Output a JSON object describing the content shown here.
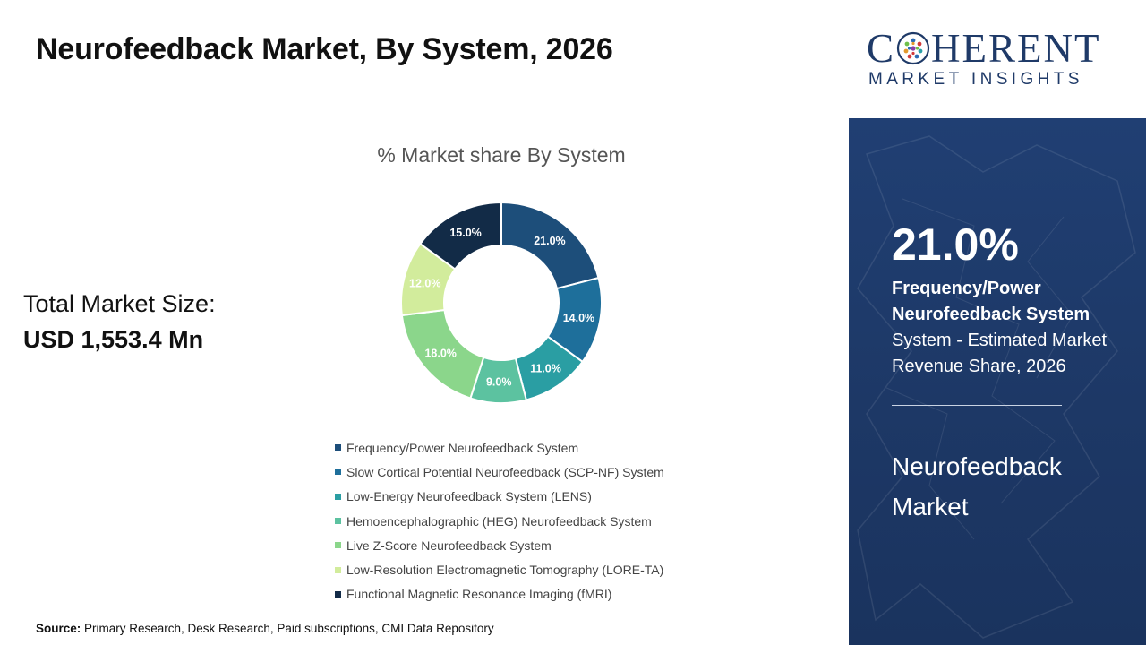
{
  "title": "Neurofeedback Market, By System, 2026",
  "total_market": {
    "label": "Total Market Size:",
    "value": "USD 1,553.4 Mn"
  },
  "source": {
    "label": "Source:",
    "text": " Primary Research, Desk Research, Paid subscriptions, CMI Data Repository"
  },
  "chart_data": {
    "type": "pie",
    "donut": true,
    "title": "% Market share By System",
    "legend_position": "bottom",
    "categories": [
      "Frequency/Power Neurofeedback System",
      "Slow Cortical Potential Neurofeedback (SCP-NF) System",
      "Low-Energy Neurofeedback System (LENS)",
      "Hemoencephalographic (HEG) Neurofeedback System",
      "Live Z-Score Neurofeedback System",
      "Low-Resolution Electromagnetic Tomography (LORE-TA)",
      "Functional Magnetic Resonance Imaging (fMRI)"
    ],
    "values": [
      21.0,
      14.0,
      11.0,
      9.0,
      18.0,
      12.0,
      15.0
    ],
    "data_labels": [
      "21.0%",
      "14.0%",
      "11.0%",
      "9.0%",
      "18.0%",
      "12.0%",
      "15.0%"
    ],
    "colors": [
      "#1d4e7a",
      "#1e6f9b",
      "#2a9ea3",
      "#5cc2a0",
      "#8bd68b",
      "#d2ec9c",
      "#122b47"
    ],
    "label_colors": [
      "#ffffff",
      "#ffffff",
      "#ffffff",
      "#ffffff",
      "#ffffff",
      "#ffffff",
      "#ffffff"
    ]
  },
  "sidebar": {
    "logo_word_left": "C",
    "logo_word_right": "HERENT",
    "logo_tagline": "MARKET INSIGHTS",
    "highlight_value": "21.0%",
    "highlight_segment": "Frequency/Power Neurofeedback System",
    "highlight_description": "System - Estimated Market Revenue Share, 2026",
    "market_name": "Neurofeedback Market",
    "panel_color": "#1f3b6c",
    "brand_color": "#1f3a68"
  }
}
